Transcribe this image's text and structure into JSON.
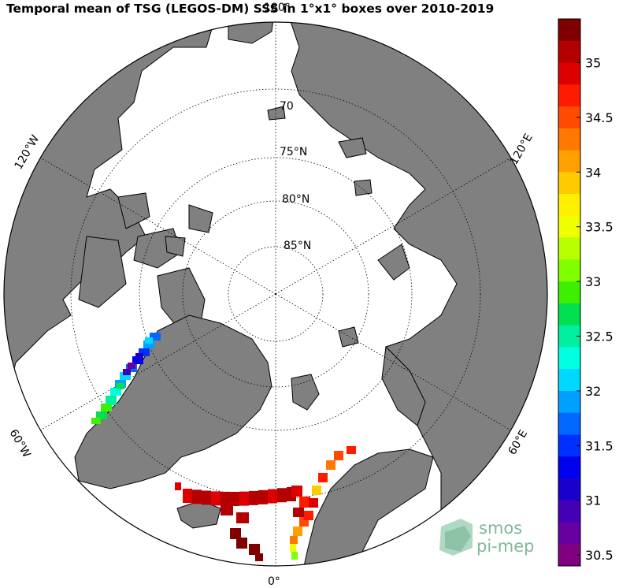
{
  "title": "Temporal mean of TSG (LEGOS-DM) SSS in 1°x1° boxes over 2010-2019",
  "map": {
    "projection": "north-polar-stereographic",
    "latitude_labels": [
      "70",
      "75°N",
      "80°N",
      "85°N"
    ],
    "longitude_labels": [
      {
        "text": "180°",
        "position": "top"
      },
      {
        "text": "120°W",
        "position": "upper-left"
      },
      {
        "text": "120°E",
        "position": "upper-right"
      },
      {
        "text": "60°W",
        "position": "lower-left"
      },
      {
        "text": "60°E",
        "position": "lower-right"
      },
      {
        "text": "0°",
        "position": "bottom"
      }
    ],
    "land_color": "#808080",
    "ocean_color": "#ffffff"
  },
  "colorbar": {
    "min": 30.4,
    "max": 35.4,
    "ticks": [
      "35",
      "34.5",
      "34",
      "33.5",
      "33",
      "32.5",
      "32",
      "31.5",
      "31",
      "30.5"
    ],
    "tick_values": [
      35,
      34.5,
      34,
      33.5,
      33,
      32.5,
      32,
      31.5,
      31,
      30.5
    ],
    "colors_top_to_bottom": [
      "#800000",
      "#b40000",
      "#dd0000",
      "#ff1a00",
      "#ff4a00",
      "#ff7800",
      "#ffa000",
      "#ffcc00",
      "#fff000",
      "#eeff00",
      "#b8ff00",
      "#7fff00",
      "#3cf000",
      "#00e050",
      "#00f0a0",
      "#00ffe0",
      "#00d8ff",
      "#00a0ff",
      "#0068ff",
      "#0030ff",
      "#0000ee",
      "#1a00cc",
      "#4400b4",
      "#6600a0",
      "#800080"
    ]
  },
  "logo": {
    "line1": "smos",
    "line2": "pi-mep"
  },
  "legend_colors": {
    "greenland_coast_blue": "#00a8ff",
    "barents_red": "#cc0000",
    "dark_red": "#900000"
  }
}
